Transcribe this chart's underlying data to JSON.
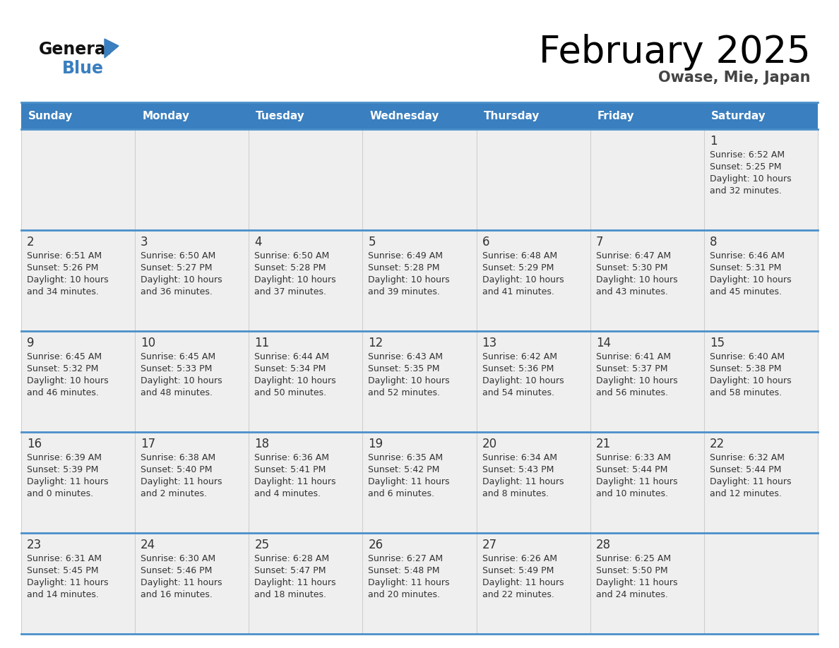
{
  "title": "February 2025",
  "subtitle": "Owase, Mie, Japan",
  "header_color": "#3a7fbf",
  "header_text_color": "#ffffff",
  "cell_bg": "#efefef",
  "cell_bg_white": "#ffffff",
  "border_color": "#3a7fbf",
  "separator_color": "#4a8fca",
  "text_color": "#333333",
  "day_headers": [
    "Sunday",
    "Monday",
    "Tuesday",
    "Wednesday",
    "Thursday",
    "Friday",
    "Saturday"
  ],
  "weeks": [
    [
      {
        "day": "",
        "info": ""
      },
      {
        "day": "",
        "info": ""
      },
      {
        "day": "",
        "info": ""
      },
      {
        "day": "",
        "info": ""
      },
      {
        "day": "",
        "info": ""
      },
      {
        "day": "",
        "info": ""
      },
      {
        "day": "1",
        "info": "Sunrise: 6:52 AM\nSunset: 5:25 PM\nDaylight: 10 hours\nand 32 minutes."
      }
    ],
    [
      {
        "day": "2",
        "info": "Sunrise: 6:51 AM\nSunset: 5:26 PM\nDaylight: 10 hours\nand 34 minutes."
      },
      {
        "day": "3",
        "info": "Sunrise: 6:50 AM\nSunset: 5:27 PM\nDaylight: 10 hours\nand 36 minutes."
      },
      {
        "day": "4",
        "info": "Sunrise: 6:50 AM\nSunset: 5:28 PM\nDaylight: 10 hours\nand 37 minutes."
      },
      {
        "day": "5",
        "info": "Sunrise: 6:49 AM\nSunset: 5:28 PM\nDaylight: 10 hours\nand 39 minutes."
      },
      {
        "day": "6",
        "info": "Sunrise: 6:48 AM\nSunset: 5:29 PM\nDaylight: 10 hours\nand 41 minutes."
      },
      {
        "day": "7",
        "info": "Sunrise: 6:47 AM\nSunset: 5:30 PM\nDaylight: 10 hours\nand 43 minutes."
      },
      {
        "day": "8",
        "info": "Sunrise: 6:46 AM\nSunset: 5:31 PM\nDaylight: 10 hours\nand 45 minutes."
      }
    ],
    [
      {
        "day": "9",
        "info": "Sunrise: 6:45 AM\nSunset: 5:32 PM\nDaylight: 10 hours\nand 46 minutes."
      },
      {
        "day": "10",
        "info": "Sunrise: 6:45 AM\nSunset: 5:33 PM\nDaylight: 10 hours\nand 48 minutes."
      },
      {
        "day": "11",
        "info": "Sunrise: 6:44 AM\nSunset: 5:34 PM\nDaylight: 10 hours\nand 50 minutes."
      },
      {
        "day": "12",
        "info": "Sunrise: 6:43 AM\nSunset: 5:35 PM\nDaylight: 10 hours\nand 52 minutes."
      },
      {
        "day": "13",
        "info": "Sunrise: 6:42 AM\nSunset: 5:36 PM\nDaylight: 10 hours\nand 54 minutes."
      },
      {
        "day": "14",
        "info": "Sunrise: 6:41 AM\nSunset: 5:37 PM\nDaylight: 10 hours\nand 56 minutes."
      },
      {
        "day": "15",
        "info": "Sunrise: 6:40 AM\nSunset: 5:38 PM\nDaylight: 10 hours\nand 58 minutes."
      }
    ],
    [
      {
        "day": "16",
        "info": "Sunrise: 6:39 AM\nSunset: 5:39 PM\nDaylight: 11 hours\nand 0 minutes."
      },
      {
        "day": "17",
        "info": "Sunrise: 6:38 AM\nSunset: 5:40 PM\nDaylight: 11 hours\nand 2 minutes."
      },
      {
        "day": "18",
        "info": "Sunrise: 6:36 AM\nSunset: 5:41 PM\nDaylight: 11 hours\nand 4 minutes."
      },
      {
        "day": "19",
        "info": "Sunrise: 6:35 AM\nSunset: 5:42 PM\nDaylight: 11 hours\nand 6 minutes."
      },
      {
        "day": "20",
        "info": "Sunrise: 6:34 AM\nSunset: 5:43 PM\nDaylight: 11 hours\nand 8 minutes."
      },
      {
        "day": "21",
        "info": "Sunrise: 6:33 AM\nSunset: 5:44 PM\nDaylight: 11 hours\nand 10 minutes."
      },
      {
        "day": "22",
        "info": "Sunrise: 6:32 AM\nSunset: 5:44 PM\nDaylight: 11 hours\nand 12 minutes."
      }
    ],
    [
      {
        "day": "23",
        "info": "Sunrise: 6:31 AM\nSunset: 5:45 PM\nDaylight: 11 hours\nand 14 minutes."
      },
      {
        "day": "24",
        "info": "Sunrise: 6:30 AM\nSunset: 5:46 PM\nDaylight: 11 hours\nand 16 minutes."
      },
      {
        "day": "25",
        "info": "Sunrise: 6:28 AM\nSunset: 5:47 PM\nDaylight: 11 hours\nand 18 minutes."
      },
      {
        "day": "26",
        "info": "Sunrise: 6:27 AM\nSunset: 5:48 PM\nDaylight: 11 hours\nand 20 minutes."
      },
      {
        "day": "27",
        "info": "Sunrise: 6:26 AM\nSunset: 5:49 PM\nDaylight: 11 hours\nand 22 minutes."
      },
      {
        "day": "28",
        "info": "Sunrise: 6:25 AM\nSunset: 5:50 PM\nDaylight: 11 hours\nand 24 minutes."
      },
      {
        "day": "",
        "info": ""
      }
    ]
  ],
  "logo_general_color": "#111111",
  "logo_blue_color": "#3a7fbf",
  "logo_triangle_color": "#3a7fbf"
}
